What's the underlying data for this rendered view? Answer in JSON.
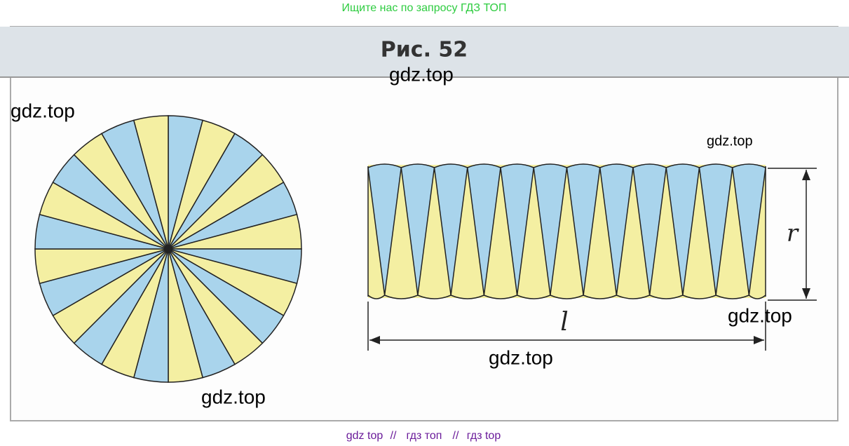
{
  "header": {
    "text": "Ищите нас по запросу ГДЗ ТОП"
  },
  "figure": {
    "caption": "Рис. 52",
    "label_r": "r",
    "label_l": "l"
  },
  "watermarks": [
    "gdz.top",
    "gdz.top",
    "gdz.top",
    "gdz.top",
    "gdz.top",
    "gdz.top"
  ],
  "footer": {
    "items": [
      "gdz top",
      "гдз топ",
      "гдз top"
    ],
    "separator": "//"
  }
}
